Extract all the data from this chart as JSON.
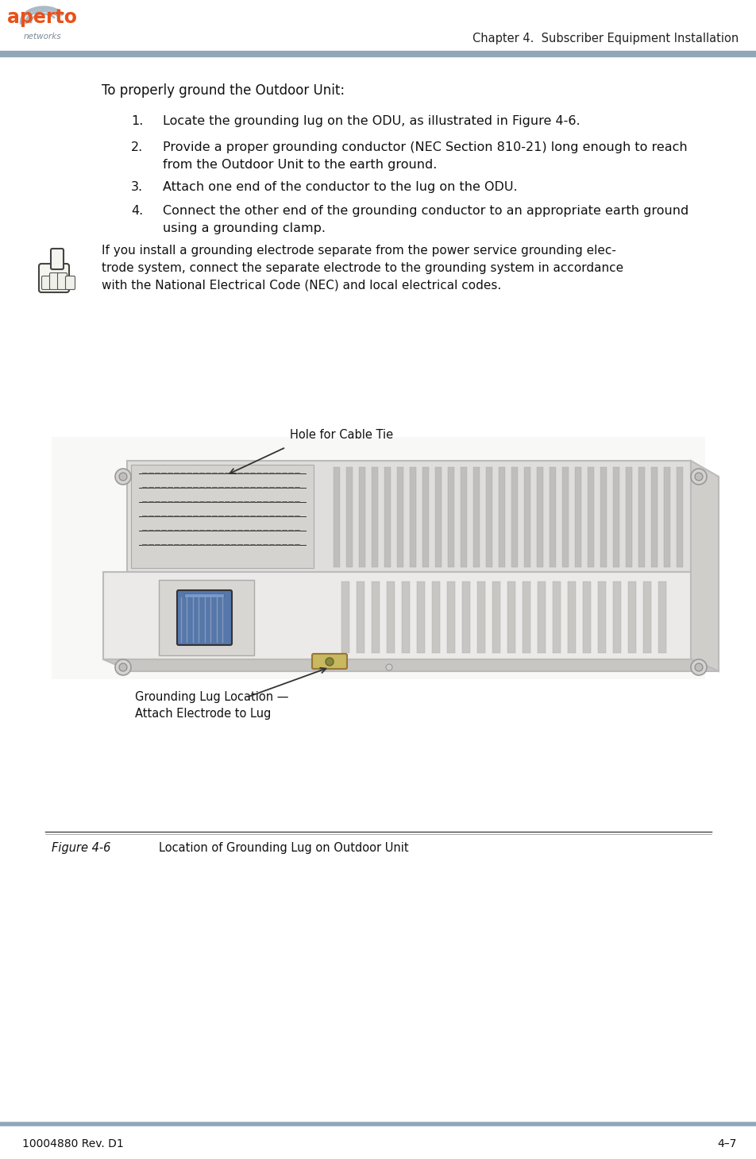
{
  "bg_color": "#ffffff",
  "header_line_color": "#8fa8b8",
  "page_width": 9.53,
  "page_height": 14.59,
  "chapter_header": "Chapter 4.  Subscriber Equipment Installation",
  "title_text": "To properly ground the Outdoor Unit:",
  "numbered_items": [
    {
      "num": "1.",
      "text": "Locate the grounding lug on the ODU, as illustrated in Figure 4-6."
    },
    {
      "num": "2.",
      "text": "Provide a proper grounding conductor (NEC Section 810-21) long enough to reach\nfrom the Outdoor Unit to the earth ground."
    },
    {
      "num": "3.",
      "text": "Attach one end of the conductor to the lug on the ODU."
    },
    {
      "num": "4.",
      "text": "Connect the other end of the grounding conductor to an appropriate earth ground\nusing a grounding clamp."
    }
  ],
  "note_text": "If you install a grounding electrode separate from the power service grounding elec-\ntrode system, connect the separate electrode to the grounding system in accordance\nwith the National Electrical Code (NEC) and local electrical codes.",
  "figure_caption": "Figure 4-6",
  "figure_caption_desc": "Location of Grounding Lug on Outdoor Unit",
  "annotation_hole_text": "Hole for Cable Tie",
  "annotation_ground_text": "Grounding Lug Location —\nAttach Electrode to Lug",
  "footer_left": "10004880 Rev. D1",
  "footer_right": "4–7"
}
